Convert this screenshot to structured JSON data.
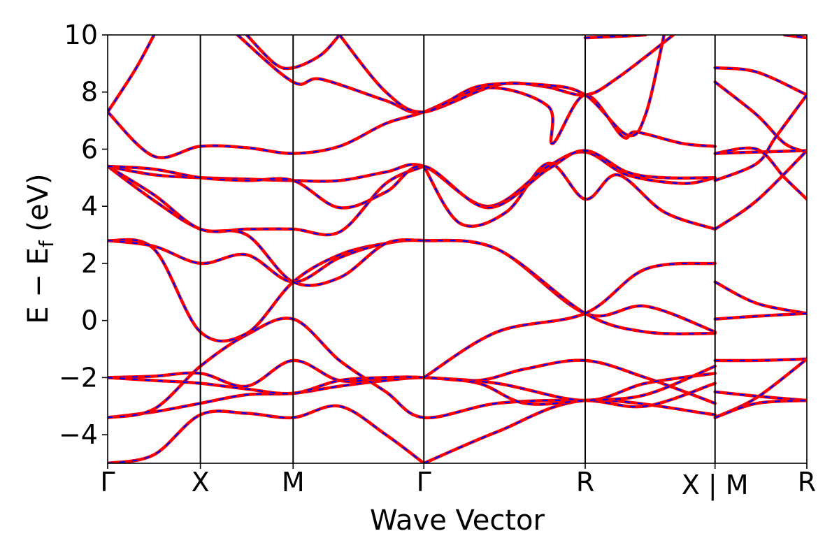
{
  "chart_data": {
    "type": "line",
    "title": "",
    "xlabel": "Wave Vector",
    "ylabel": "E − E",
    "ylabel_sub": "f",
    "ylabel_unit": " (eV)",
    "ylim": [
      -5,
      10
    ],
    "yticks": [
      {
        "value": -4,
        "label": "−4"
      },
      {
        "value": -2,
        "label": "−2"
      },
      {
        "value": 0,
        "label": "0"
      },
      {
        "value": 2,
        "label": "2"
      },
      {
        "value": 4,
        "label": "4"
      },
      {
        "value": 6,
        "label": "6"
      },
      {
        "value": 8,
        "label": "8"
      },
      {
        "value": 10,
        "label": "10"
      }
    ],
    "xlim": [
      0,
      7.54
    ],
    "high_symmetry_points": [
      {
        "position": 0.0,
        "label": "Γ"
      },
      {
        "position": 1.0,
        "label": "X"
      },
      {
        "position": 2.0,
        "label": "M"
      },
      {
        "position": 3.41,
        "label": "Γ"
      },
      {
        "position": 5.15,
        "label": "R"
      },
      {
        "position": 6.55,
        "label": "X | M"
      },
      {
        "position": 7.54,
        "label": "R"
      }
    ],
    "colors": {
      "series_1": "#ff0000",
      "series_2": "#0000ff",
      "axes": "#000000"
    },
    "segments": [
      {
        "x_range": [
          0,
          6.55
        ],
        "bands": [
          [
            [
              0,
              -5.0
            ],
            [
              0.5,
              -4.7
            ],
            [
              1.0,
              -3.3
            ],
            [
              1.5,
              -3.25
            ],
            [
              2.0,
              -3.4
            ],
            [
              2.5,
              -3.0
            ],
            [
              3.0,
              -4.0
            ],
            [
              3.41,
              -5.0
            ]
          ],
          [
            [
              3.41,
              -5.0
            ],
            [
              4.2,
              -3.9
            ],
            [
              5.15,
              -2.8
            ],
            [
              6.55,
              -3.3
            ]
          ],
          [
            [
              0,
              -3.4
            ],
            [
              0.5,
              -3.2
            ],
            [
              1.0,
              -2.9
            ],
            [
              1.5,
              -2.6
            ],
            [
              2.0,
              -2.55
            ],
            [
              2.5,
              -2.3
            ],
            [
              3.0,
              -2.1
            ],
            [
              3.41,
              -2.0
            ],
            [
              4.0,
              -2.1
            ],
            [
              4.5,
              -1.7
            ],
            [
              5.15,
              -1.4
            ],
            [
              5.8,
              -2.0
            ],
            [
              6.55,
              -2.9
            ]
          ],
          [
            [
              0,
              -3.4
            ],
            [
              0.5,
              -3.1
            ],
            [
              1.0,
              -1.6
            ],
            [
              1.5,
              -0.5
            ],
            [
              2.0,
              0.05
            ],
            [
              2.5,
              -1.4
            ],
            [
              3.0,
              -2.5
            ],
            [
              3.41,
              -3.4
            ],
            [
              4.2,
              -2.9
            ],
            [
              5.15,
              -2.8
            ],
            [
              5.8,
              -3.0
            ],
            [
              6.55,
              -2.2
            ]
          ],
          [
            [
              0,
              -2.0
            ],
            [
              0.5,
              -1.95
            ],
            [
              1.0,
              -1.85
            ],
            [
              1.5,
              -2.3
            ],
            [
              2.0,
              -1.4
            ],
            [
              2.5,
              -2.1
            ],
            [
              3.0,
              -2.0
            ],
            [
              3.41,
              -2.0
            ],
            [
              4.2,
              -2.2
            ],
            [
              5.15,
              -2.8
            ],
            [
              5.8,
              -2.2
            ],
            [
              6.55,
              -1.85
            ]
          ],
          [
            [
              0,
              -2.0
            ],
            [
              0.5,
              -2.1
            ],
            [
              1.0,
              -2.2
            ],
            [
              1.5,
              -2.4
            ],
            [
              2.0,
              -2.55
            ],
            [
              2.5,
              -2.1
            ],
            [
              3.0,
              -2.0
            ],
            [
              3.41,
              -2.0
            ],
            [
              4.0,
              -2.2
            ],
            [
              4.5,
              -2.9
            ],
            [
              5.15,
              -2.8
            ],
            [
              5.8,
              -2.6
            ],
            [
              6.55,
              -1.6
            ]
          ],
          [
            [
              0,
              2.8
            ],
            [
              0.5,
              2.5
            ],
            [
              1.0,
              -0.4
            ],
            [
              1.5,
              -0.45
            ],
            [
              2.0,
              1.35
            ],
            [
              2.5,
              2.3
            ],
            [
              3.0,
              2.7
            ],
            [
              3.41,
              2.8
            ],
            [
              4.2,
              2.5
            ],
            [
              5.15,
              0.25
            ],
            [
              5.8,
              0.5
            ],
            [
              6.55,
              -0.4
            ]
          ],
          [
            [
              0,
              2.8
            ],
            [
              0.5,
              2.6
            ],
            [
              1.0,
              2.0
            ],
            [
              1.5,
              2.3
            ],
            [
              2.0,
              1.35
            ],
            [
              2.5,
              2.2
            ],
            [
              3.0,
              2.7
            ],
            [
              3.41,
              2.8
            ],
            [
              4.2,
              2.5
            ],
            [
              5.15,
              0.25
            ],
            [
              5.8,
              -0.4
            ],
            [
              6.55,
              -0.45
            ]
          ],
          [
            [
              0,
              5.4
            ],
            [
              0.5,
              4.2
            ],
            [
              1.0,
              3.2
            ],
            [
              1.5,
              3.0
            ],
            [
              2.0,
              1.35
            ],
            [
              2.5,
              1.5
            ],
            [
              3.0,
              2.7
            ],
            [
              3.41,
              2.8
            ]
          ],
          [
            [
              3.41,
              5.4
            ],
            [
              3.8,
              3.4
            ],
            [
              4.3,
              3.8
            ],
            [
              4.75,
              5.5
            ],
            [
              5.15,
              4.25
            ],
            [
              5.5,
              5.1
            ],
            [
              6.0,
              3.8
            ],
            [
              6.55,
              3.2
            ]
          ],
          [
            [
              3.41,
              -2.0
            ],
            [
              4.2,
              -0.4
            ],
            [
              5.15,
              0.25
            ],
            [
              5.8,
              1.8
            ],
            [
              6.55,
              2.0
            ]
          ],
          [
            [
              0,
              5.4
            ],
            [
              0.5,
              4.4
            ],
            [
              1.0,
              3.2
            ],
            [
              1.5,
              3.2
            ],
            [
              2.0,
              3.2
            ],
            [
              2.5,
              3.1
            ],
            [
              3.0,
              4.8
            ],
            [
              3.41,
              5.4
            ]
          ],
          [
            [
              0,
              5.4
            ],
            [
              0.5,
              5.1
            ],
            [
              1.0,
              5.0
            ],
            [
              1.5,
              4.95
            ],
            [
              2.0,
              4.9
            ],
            [
              2.5,
              4.9
            ],
            [
              3.0,
              5.2
            ],
            [
              3.41,
              5.4
            ],
            [
              4.1,
              4.0
            ],
            [
              4.75,
              5.4
            ],
            [
              5.15,
              5.9
            ],
            [
              5.6,
              5.1
            ],
            [
              6.2,
              4.8
            ],
            [
              6.55,
              5.0
            ]
          ],
          [
            [
              0,
              5.4
            ],
            [
              0.5,
              5.3
            ],
            [
              1.0,
              5.0
            ],
            [
              1.5,
              4.9
            ],
            [
              2.0,
              4.9
            ],
            [
              2.5,
              3.95
            ],
            [
              3.0,
              4.5
            ],
            [
              3.41,
              5.4
            ],
            [
              4.1,
              3.95
            ],
            [
              4.75,
              5.3
            ],
            [
              5.15,
              5.95
            ],
            [
              5.6,
              5.2
            ],
            [
              6.0,
              5.0
            ],
            [
              6.55,
              5.0
            ]
          ],
          [
            [
              0,
              7.3
            ],
            [
              0.5,
              5.75
            ],
            [
              1.0,
              6.1
            ],
            [
              1.5,
              6.05
            ],
            [
              2.0,
              5.85
            ],
            [
              2.5,
              6.1
            ],
            [
              3.0,
              6.9
            ],
            [
              3.41,
              7.3
            ],
            [
              4.1,
              8.15
            ],
            [
              4.75,
              7.5
            ],
            [
              4.8,
              6.2
            ],
            [
              5.15,
              7.9
            ],
            [
              5.55,
              6.45
            ],
            [
              5.7,
              6.6
            ],
            [
              6.2,
              6.2
            ],
            [
              6.55,
              6.1
            ]
          ],
          [
            [
              0,
              7.3
            ],
            [
              0.3,
              8.8
            ],
            [
              0.5,
              10.0
            ]
          ],
          [
            [
              1.4,
              10.0
            ],
            [
              2.0,
              8.35
            ],
            [
              2.3,
              8.45
            ],
            [
              3.0,
              7.7
            ],
            [
              3.41,
              7.3
            ],
            [
              4.2,
              8.25
            ],
            [
              4.7,
              8.2
            ],
            [
              5.15,
              7.9
            ],
            [
              5.5,
              8.5
            ],
            [
              6.1,
              10.0
            ]
          ],
          [
            [
              1.5,
              10.0
            ],
            [
              1.8,
              9.0
            ],
            [
              2.0,
              8.85
            ],
            [
              2.3,
              9.3
            ],
            [
              2.5,
              10.0
            ]
          ],
          [
            [
              2.5,
              10.0
            ],
            [
              3.0,
              8.0
            ],
            [
              3.41,
              7.3
            ],
            [
              4.0,
              8.2
            ],
            [
              4.7,
              8.25
            ],
            [
              5.15,
              7.9
            ],
            [
              5.6,
              6.5
            ],
            [
              5.8,
              7.2
            ],
            [
              6.0,
              10.0
            ]
          ],
          [
            [
              5.15,
              9.9
            ],
            [
              5.5,
              9.95
            ],
            [
              5.8,
              10.0
            ]
          ]
        ]
      },
      {
        "x_range": [
          6.55,
          7.54
        ],
        "bands": [
          [
            [
              6.55,
              8.85
            ],
            [
              7.0,
              8.7
            ],
            [
              7.54,
              7.9
            ]
          ],
          [
            [
              6.55,
              8.35
            ],
            [
              7.0,
              7.2
            ],
            [
              7.3,
              6.2
            ],
            [
              7.54,
              5.9
            ]
          ],
          [
            [
              6.55,
              5.85
            ],
            [
              7.0,
              5.9
            ],
            [
              7.54,
              5.95
            ]
          ],
          [
            [
              6.55,
              4.9
            ],
            [
              7.0,
              5.5
            ],
            [
              7.2,
              6.4
            ],
            [
              7.54,
              7.9
            ]
          ],
          [
            [
              6.55,
              5.85
            ],
            [
              7.0,
              6.0
            ],
            [
              7.3,
              5.0
            ],
            [
              7.54,
              4.25
            ]
          ],
          [
            [
              6.55,
              3.2
            ],
            [
              7.0,
              4.2
            ],
            [
              7.54,
              5.95
            ]
          ],
          [
            [
              6.55,
              1.35
            ],
            [
              7.0,
              0.6
            ],
            [
              7.54,
              0.25
            ]
          ],
          [
            [
              6.55,
              0.05
            ],
            [
              7.0,
              0.15
            ],
            [
              7.54,
              0.25
            ]
          ],
          [
            [
              6.55,
              -1.4
            ],
            [
              7.0,
              -1.4
            ],
            [
              7.54,
              -1.35
            ]
          ],
          [
            [
              6.55,
              -2.5
            ],
            [
              7.0,
              -2.65
            ],
            [
              7.54,
              -2.8
            ]
          ],
          [
            [
              6.55,
              -3.4
            ],
            [
              7.0,
              -2.7
            ],
            [
              7.54,
              -1.35
            ]
          ],
          [
            [
              6.55,
              -3.4
            ],
            [
              7.0,
              -2.9
            ],
            [
              7.54,
              -2.8
            ]
          ],
          [
            [
              7.3,
              10.0
            ],
            [
              7.54,
              9.9
            ]
          ]
        ]
      }
    ]
  }
}
